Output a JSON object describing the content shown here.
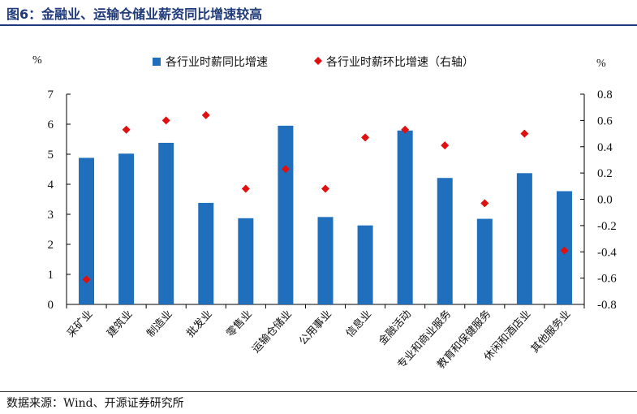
{
  "header": {
    "title": "图6：金融业、运输仓储业薪资同比增速较高"
  },
  "footer": {
    "source": "数据来源：Wind、开源证券研究所"
  },
  "colors": {
    "bar": "#1f6fbd",
    "marker": "#e01010",
    "title": "#1f3a7a"
  },
  "chart_data": {
    "type": "bar",
    "title": "",
    "xlabel": "",
    "y_unit_left": "%",
    "y_unit_right": "%",
    "ylim": [
      0,
      7
    ],
    "y2lim": [
      -0.8,
      0.8
    ],
    "yticks": [
      "0",
      "1",
      "2",
      "3",
      "4",
      "5",
      "6",
      "7"
    ],
    "y2ticks": [
      "-0.8",
      "-0.6",
      "-0.4",
      "-0.2",
      "0.0",
      "0.2",
      "0.4",
      "0.6",
      "0.8"
    ],
    "legend_position": "top",
    "grid": false,
    "categories": [
      "采矿业",
      "建筑业",
      "制造业",
      "批发业",
      "零售业",
      "运输仓储业",
      "公用事业",
      "信息业",
      "金融活动",
      "专业和商业服务",
      "教育和保健服务",
      "休闲和酒店业",
      "其他服务业"
    ],
    "series": [
      {
        "name": "各行业时薪同比增速",
        "type": "bar",
        "axis": "left",
        "values": [
          4.88,
          5.02,
          5.38,
          3.38,
          2.87,
          5.95,
          2.91,
          2.63,
          5.79,
          4.21,
          2.85,
          4.37,
          3.77
        ]
      },
      {
        "name": "各行业时薪环比增速（右轴）",
        "type": "scatter",
        "axis": "right",
        "values": [
          -0.61,
          0.53,
          0.6,
          0.64,
          0.08,
          0.23,
          0.08,
          0.47,
          0.53,
          0.41,
          -0.03,
          0.5,
          -0.39
        ]
      }
    ]
  }
}
